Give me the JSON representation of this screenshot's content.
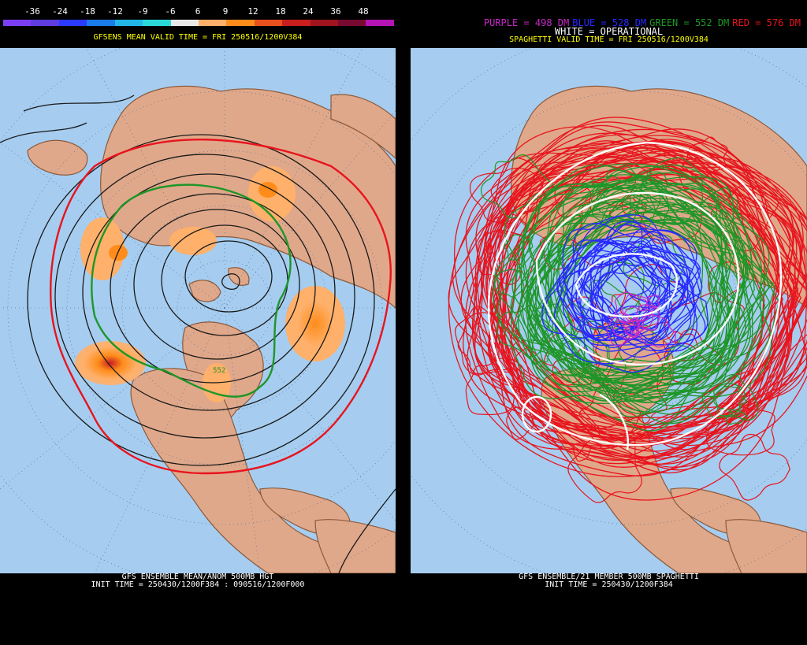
{
  "left_panel": {
    "legend_values": [
      "-36",
      "-24",
      "-18",
      "-12",
      "-9",
      "-6",
      "6",
      "9",
      "12",
      "18",
      "24",
      "36",
      "48"
    ],
    "legend_colors": [
      "#7c3ef2",
      "#5e3ce0",
      "#2b3bff",
      "#1a7ce8",
      "#23b5e6",
      "#2ad8d8",
      "#e8e8e8",
      "#ffb06a",
      "#ff8c1a",
      "#e8501e",
      "#c81e1e",
      "#a0141e",
      "#780a32",
      "#b414b4"
    ],
    "header": "GFSENS MEAN VALID TIME = FRI 250516/1200V384",
    "footer_line1": "GFS ENSEMBLE MEAN/ANOM 500MB HGT",
    "footer_line2": "INIT TIME = 250430/1200F384 : 090516/1200F000",
    "contour_label": "552",
    "colors": {
      "ocean": "#a6cdf0",
      "land": "#e0a88a",
      "border": "#8b5a3c",
      "red": "#e8141e",
      "green": "#1e9628",
      "black": "#1a1a1a",
      "anom_light": "#ffb06a",
      "anom_mid": "#ff8c1a",
      "anom_dark": "#c81e1e",
      "header_text": "#ffff00"
    }
  },
  "right_panel": {
    "legend": [
      {
        "label": "PURPLE = 498 DM",
        "color": "#c828c8"
      },
      {
        "label": "BLUE = 528 DM",
        "color": "#2828ff"
      },
      {
        "label": "GREEN = 552 DM",
        "color": "#1e9628"
      },
      {
        "label": "RED = 576 DM",
        "color": "#e8141e"
      }
    ],
    "white_label": "WHITE = OPERATIONAL",
    "header": "SPAGHETTI VALID TIME = FRI 250516/1200V384",
    "footer_line1": "GFS ENSEMBLE/21 MEMBER 500MB SPAGHETTI",
    "footer_line2": "INIT TIME = 250430/1200F384"
  }
}
